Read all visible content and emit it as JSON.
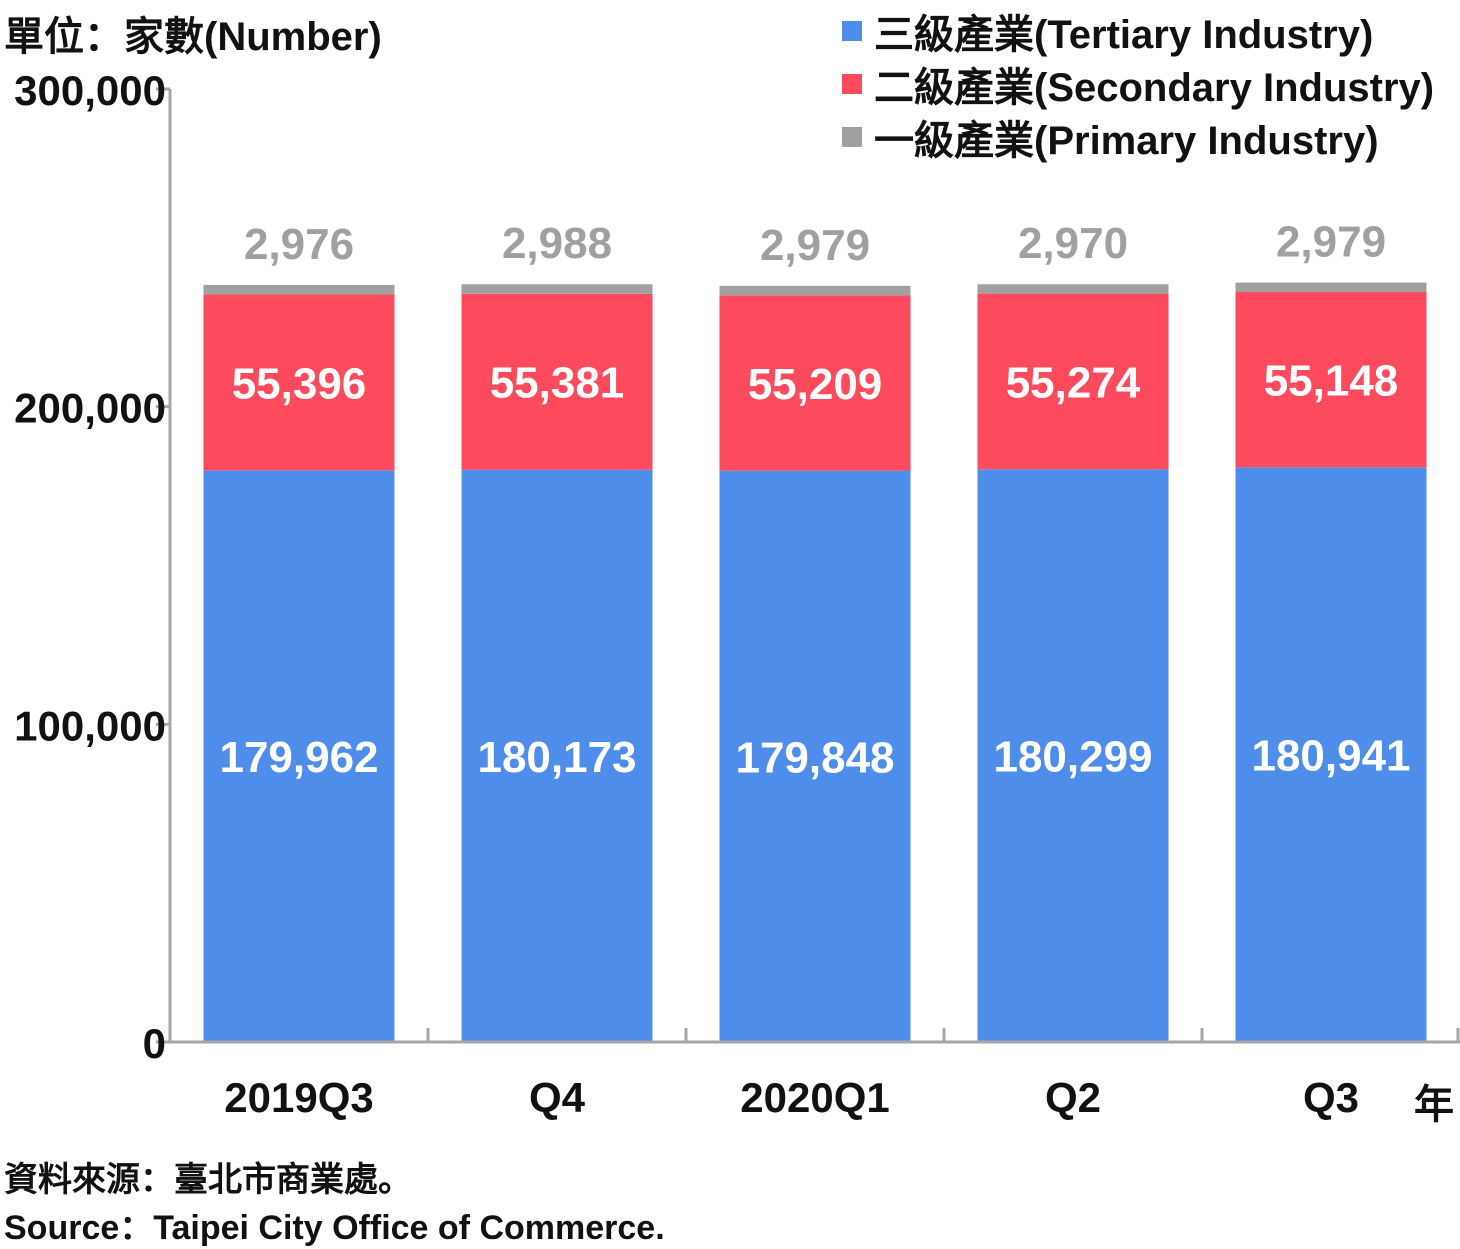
{
  "header": {
    "unit_label": "單位：家數(Number)"
  },
  "legend": [
    {
      "label": "三級產業(Tertiary Industry)",
      "color": "#4f8dea"
    },
    {
      "label": "二級產業(Secondary Industry)",
      "color": "#fd4a5c"
    },
    {
      "label": "一級產業(Primary Industry)",
      "color": "#a0a0a0"
    }
  ],
  "footer": {
    "source_zh": "資料來源：臺北市商業處。",
    "source_en": "Source：Taipei City Office of Commerce."
  },
  "x_unit": "年",
  "chart_data": {
    "type": "bar",
    "stacked": true,
    "categories": [
      "2019Q3",
      "Q4",
      "2020Q1",
      "Q2",
      "Q3"
    ],
    "series": [
      {
        "name": "三級產業(Tertiary Industry)",
        "color": "#4f8dea",
        "label_color": "#ffffff",
        "values": [
          179962,
          180173,
          179848,
          180299,
          180941
        ]
      },
      {
        "name": "二級產業(Secondary Industry)",
        "color": "#fd4a5c",
        "label_color": "#ffffff",
        "values": [
          55396,
          55381,
          55209,
          55274,
          55148
        ]
      },
      {
        "name": "一級產業(Primary Industry)",
        "color": "#a0a0a0",
        "label_color": "#a0a0a0",
        "values": [
          2976,
          2988,
          2979,
          2970,
          2979
        ]
      }
    ],
    "y_ticks": [
      0,
      100000,
      200000,
      300000
    ],
    "y_tick_labels": [
      "0",
      "100,000",
      "200,000",
      "300,000"
    ],
    "ylim": [
      0,
      300000
    ],
    "grid": false,
    "legend_position": "top-right"
  }
}
